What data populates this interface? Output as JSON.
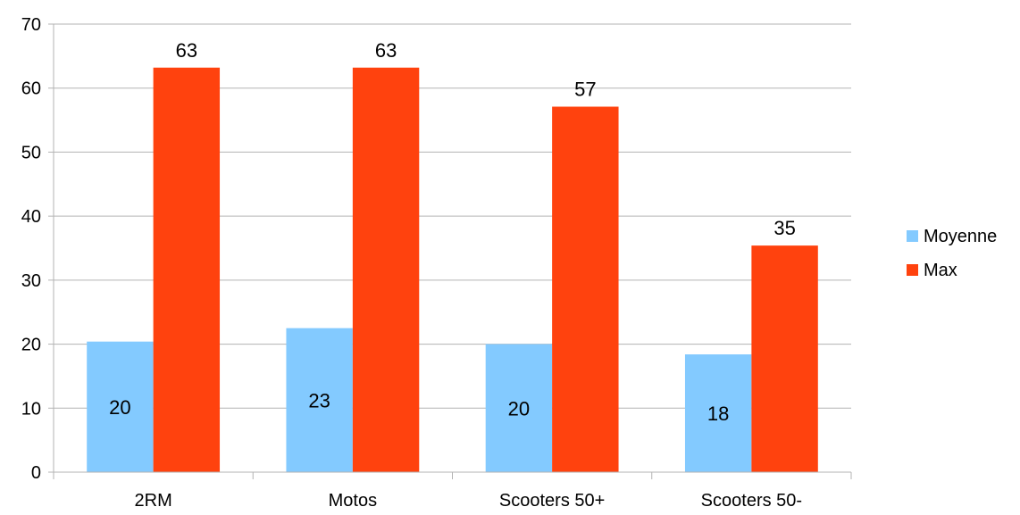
{
  "chart_data": {
    "type": "bar",
    "title": "",
    "xlabel": "",
    "ylabel": "",
    "categories": [
      "2RM",
      "Motos",
      "Scooters 50+",
      "Scooters 50-"
    ],
    "series": [
      {
        "name": "Moyenne",
        "values": [
          20.4,
          22.5,
          20.0,
          18.4
        ],
        "labels": [
          "20",
          "23",
          "20",
          "18"
        ],
        "color": "#83CAFF"
      },
      {
        "name": "Max",
        "values": [
          63.2,
          63.2,
          57.1,
          35.4
        ],
        "labels": [
          "63",
          "63",
          "57",
          "35"
        ],
        "color": "#FF420E"
      }
    ],
    "ylim": [
      0,
      70
    ],
    "yticks": [
      0,
      10,
      20,
      30,
      40,
      50,
      60,
      70
    ],
    "grid": true,
    "legend": "right"
  }
}
